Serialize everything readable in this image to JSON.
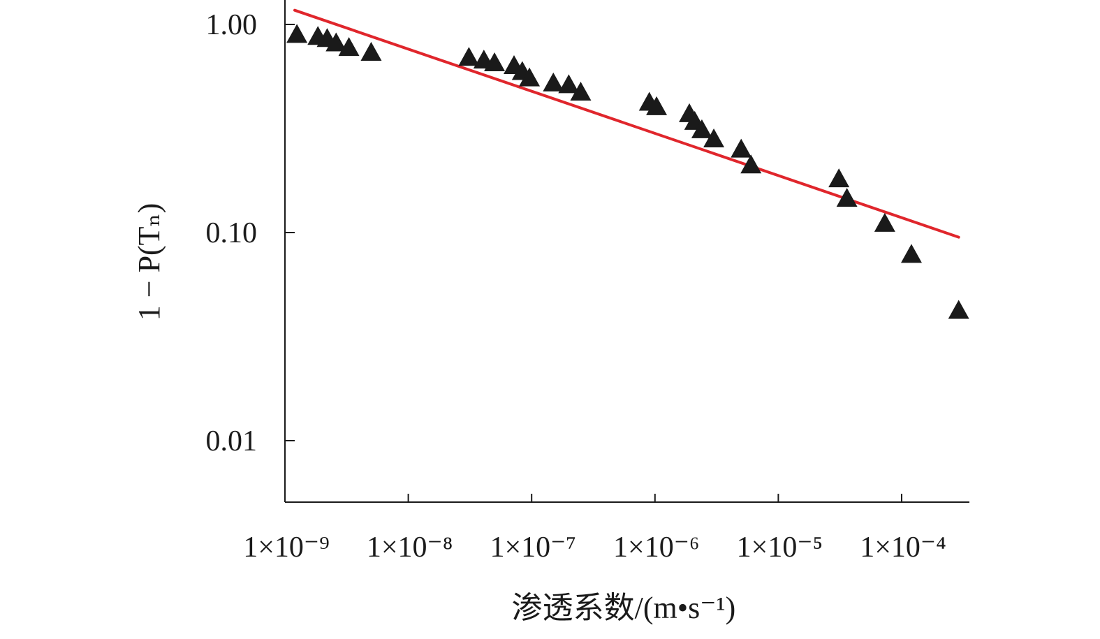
{
  "chart_data": {
    "type": "scatter",
    "title": "",
    "xlabel": "渗透系数/(m•s⁻¹)",
    "ylabel": "1 − P(Tₙ)",
    "xscale": "log",
    "yscale": "log",
    "xlim": [
      1e-09,
      0.0004
    ],
    "ylim": [
      0.0033,
      1.45
    ],
    "xticks": [
      1e-09,
      1e-08,
      1e-07,
      1e-06,
      1e-05,
      0.0001
    ],
    "xtick_labels": [
      "1×10⁻⁹",
      "1×10⁻⁸",
      "1×10⁻⁷",
      "1×10⁻⁶",
      "1×10⁻⁵",
      "1×10⁻⁴"
    ],
    "yticks": [
      1.0,
      0.1,
      0.01
    ],
    "ytick_labels": [
      "1.00",
      "0.10",
      "0.01"
    ],
    "grid": false,
    "legend": "none",
    "points": {
      "marker": "triangle",
      "color": "#1a1a1a",
      "x": [
        1.25e-09,
        1.85e-09,
        2.2e-09,
        2.6e-09,
        3.3e-09,
        5e-09,
        3.1e-08,
        4.1e-08,
        5e-08,
        7.2e-08,
        8.4e-08,
        9.6e-08,
        1.5e-07,
        2e-07,
        2.5e-07,
        9e-07,
        1.03e-06,
        1.9e-06,
        2.1e-06,
        2.4e-06,
        3e-06,
        5e-06,
        6e-06,
        3.1e-05,
        3.6e-05,
        7.3e-05,
        0.00012,
        0.00029
      ],
      "y": [
        0.89,
        0.87,
        0.85,
        0.81,
        0.77,
        0.73,
        0.69,
        0.67,
        0.65,
        0.63,
        0.59,
        0.55,
        0.52,
        0.51,
        0.47,
        0.42,
        0.4,
        0.37,
        0.34,
        0.31,
        0.28,
        0.25,
        0.21,
        0.18,
        0.145,
        0.11,
        0.078,
        0.042
      ]
    },
    "fit_line": {
      "type": "line",
      "color": "#e0262c",
      "x": [
        1.2e-09,
        0.00029
      ],
      "y": [
        1.17,
        0.095
      ]
    }
  }
}
